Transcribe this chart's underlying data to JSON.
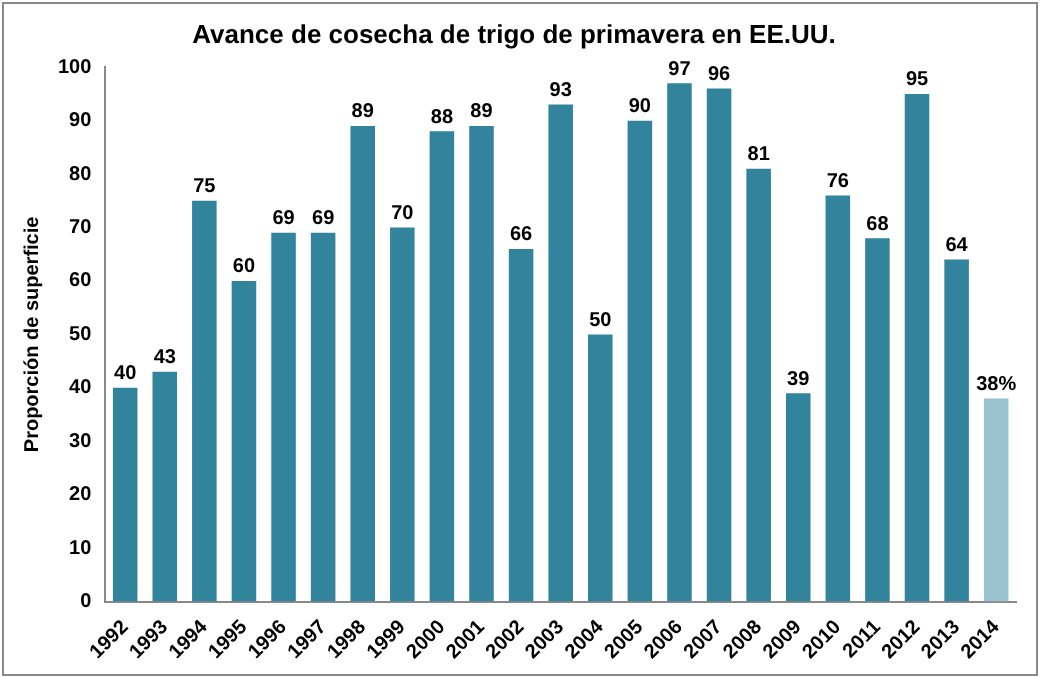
{
  "chart_data": {
    "type": "bar",
    "title": "Avance de cosecha de trigo de primavera en EE.UU.",
    "ylabel": "Proporción de superficie",
    "categories": [
      "1992",
      "1993",
      "1994",
      "1995",
      "1996",
      "1997",
      "1998",
      "1999",
      "2000",
      "2001",
      "2002",
      "2003",
      "2004",
      "2005",
      "2006",
      "2007",
      "2008",
      "2009",
      "2010",
      "2011",
      "2012",
      "2013",
      "2014"
    ],
    "values": [
      40,
      43,
      75,
      60,
      69,
      69,
      89,
      70,
      88,
      89,
      66,
      93,
      50,
      90,
      97,
      96,
      81,
      39,
      76,
      68,
      95,
      64,
      38
    ],
    "colors": [
      "#31849b",
      "#31849b",
      "#31849b",
      "#31849b",
      "#31849b",
      "#31849b",
      "#31849b",
      "#31849b",
      "#31849b",
      "#31849b",
      "#31849b",
      "#31849b",
      "#31849b",
      "#31849b",
      "#31849b",
      "#31849b",
      "#31849b",
      "#31849b",
      "#31849b",
      "#31849b",
      "#31849b",
      "#31849b",
      "#98c2cd"
    ],
    "value_labels": [
      "40",
      "43",
      "75",
      "60",
      "69",
      "69",
      "89",
      "70",
      "88",
      "89",
      "66",
      "93",
      "50",
      "90",
      "97",
      "96",
      "81",
      "39",
      "76",
      "68",
      "95",
      "64",
      "38%"
    ],
    "ylim": [
      0,
      100
    ],
    "yticks": [
      0,
      10,
      20,
      30,
      40,
      50,
      60,
      70,
      80,
      90,
      100
    ],
    "grid": false,
    "legend": false
  }
}
